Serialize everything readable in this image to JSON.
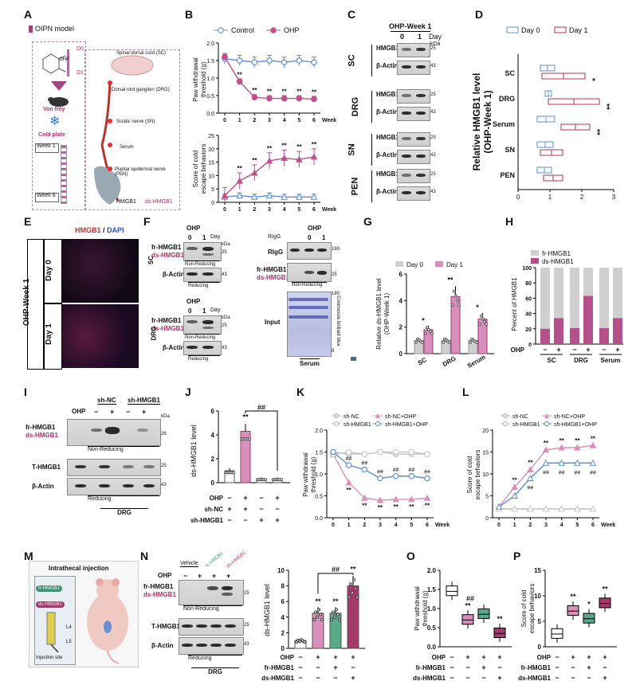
{
  "panels": {
    "A": {
      "label": "A",
      "model": "OIPN model",
      "chem": "OHP",
      "drug_labels": [
        "D0",
        "D1"
      ],
      "tests": [
        "Von frey",
        "Cold plate"
      ],
      "weeks": [
        "Week 1",
        "Week 6"
      ],
      "sites": [
        "Spinal dorsal cord (SC)",
        "Dorsal root ganglion (DRG)",
        "Sciatic nerve (SN)",
        "Serum",
        "Plantar epidermal nerve (PEN)"
      ],
      "legend": [
        "HMGB1",
        "ds-HMGB1"
      ]
    },
    "B": {
      "label": "B",
      "legend": [
        "Control",
        "OHP"
      ],
      "ylabel_top": "Paw withdrawal threshold (g)",
      "ylabel_bottom": "Score of cold escape behaviors",
      "xlabel": "Week"
    },
    "C": {
      "label": "C",
      "title": "OHP-Week 1",
      "day_labels": [
        "0",
        "1"
      ],
      "day_word": "Day",
      "kda": "kDa",
      "groups": [
        "SC",
        "DRG",
        "SN",
        "PEN"
      ],
      "proteins": [
        "HMGB1",
        "β-Actin"
      ],
      "mw": [
        "25",
        "43"
      ]
    },
    "D": {
      "label": "D",
      "legend": [
        "Day 0",
        "Day 1"
      ],
      "ylabel": "Relative HMGB1 level (OHP-Week 1)",
      "categories": [
        "SC",
        "DRG",
        "Serum",
        "SN",
        "PEN"
      ],
      "sig": [
        "*",
        "**",
        "**",
        "",
        ""
      ]
    },
    "E": {
      "label": "E",
      "title": "HMGB1 / DAPI",
      "title_a": "HMGB1",
      "title_sep": "/",
      "title_b": "DAPI",
      "side": "OHP-Week 1",
      "rows": [
        "Day 0",
        "Day 1"
      ]
    },
    "F": {
      "label": "F",
      "ohp": "OHP",
      "day_labels": [
        "0",
        "1"
      ],
      "day_word": "Day",
      "kda": "kDa",
      "sc": "SC",
      "drg": "DRG",
      "fr": "fr-HMGB1",
      "ds": "ds-HMGB1",
      "nonred": "Non-Reducing",
      "red": "Reducing",
      "actin": "β-Actin",
      "rigg": "RIgG",
      "input": "Input",
      "serum": "Serum",
      "coomassie": "Coomassie brilliant blue",
      "mw": [
        "25",
        "43",
        "180",
        "8"
      ]
    },
    "G": {
      "label": "G",
      "legend": [
        "Day 0",
        "Day 1"
      ],
      "ylabel": "Relative ds-HMGB1 level (OHP-Week 1)",
      "categories": [
        "SC",
        "DRG",
        "Serum"
      ],
      "sig": [
        "*",
        "**",
        "*"
      ]
    },
    "H": {
      "label": "H",
      "legend": [
        "fr-HMGB1",
        "ds-HMGB1"
      ],
      "ylabel": "Percent of HMGB1",
      "ohp": "OHP",
      "signs": [
        "−",
        "+",
        "−",
        "+",
        "−",
        "+"
      ],
      "groups": [
        "SC",
        "DRG",
        "Serum"
      ]
    },
    "I": {
      "label": "I",
      "groups": [
        "sh-NC",
        "sh-HMGB1"
      ],
      "ohp": "OHP",
      "signs": [
        "−",
        "+",
        "−",
        "+"
      ],
      "fr": "fr-HMGB1",
      "ds": "ds-HMGB1",
      "t": "T-HMGB1",
      "actin": "β-Actin",
      "nonred": "Non-Reducing",
      "red": "Reducing",
      "drg": "DRG",
      "kda": "kDa",
      "mw": [
        "26",
        "25",
        "43"
      ]
    },
    "J": {
      "label": "J",
      "ylabel": "ds-HMGB1 level",
      "rows": [
        "OHP",
        "sh-NC",
        "sh-HMGB1"
      ],
      "signs": [
        [
          "−",
          "+",
          "−",
          "+"
        ],
        [
          "+",
          "+",
          "−",
          "−"
        ],
        [
          "−",
          "−",
          "+",
          "+"
        ]
      ],
      "sig": [
        "**",
        "##"
      ]
    },
    "K": {
      "label": "K",
      "legend": [
        "sh-NC",
        "sh-NC+OHP",
        "sh-HMGB1",
        "sh-HMGB1+OHP"
      ],
      "ylabel": "Paw withdrawal threshold (g)",
      "xlabel": "Week"
    },
    "L": {
      "label": "L",
      "legend": [
        "sh-NC",
        "sh-NC+OHP",
        "sh-HMGB1",
        "sh-HMGB1+OHP"
      ],
      "ylabel": "Score of cold escape behaviors",
      "xlabel": "Week"
    },
    "M": {
      "label": "M",
      "title": "Intrathecal injection",
      "items": [
        "fr-HMGB1",
        "ds-HMGB1",
        "L4",
        "L5",
        "Injection site"
      ]
    },
    "N": {
      "label": "N",
      "ohp": "OHP",
      "vehicle": "Vehicle",
      "tops": [
        "fr-HMGB1",
        "ds-HMGB1"
      ],
      "fr": "fr-HMGB1",
      "ds": "ds-HMGB1",
      "t": "T-HMGB1",
      "actin": "β-Actin",
      "nonred": "Non-Reducing",
      "red": "Reducing",
      "drg": "DRG",
      "ylabel": "ds-HMGB1 level",
      "rows": [
        "OHP",
        "fr-HMGB1",
        "ds-HMGB1"
      ],
      "signs": [
        [
          "−",
          "+",
          "+",
          "+"
        ],
        [
          "−",
          "−",
          "+",
          "−"
        ],
        [
          "−",
          "−",
          "−",
          "+"
        ]
      ],
      "mw": [
        "25",
        "25",
        "43"
      ]
    },
    "O": {
      "label": "O",
      "ylabel": "Paw withdrawal threshold (g)",
      "rows": [
        "OHP",
        "fr-HMGB1",
        "ds-HMGB1"
      ],
      "signs": [
        [
          "−",
          "+",
          "+",
          "+"
        ],
        [
          "−",
          "−",
          "+",
          "−"
        ],
        [
          "−",
          "−",
          "−",
          "+"
        ]
      ]
    },
    "P": {
      "label": "P",
      "ylabel": "Score of cold escape behaviors",
      "rows": [
        "OHP",
        "fr-HMGB1",
        "ds-HMGB1"
      ],
      "signs": [
        [
          "−",
          "+",
          "+",
          "+"
        ],
        [
          "−",
          "−",
          "+",
          "−"
        ],
        [
          "−",
          "−",
          "−",
          "+"
        ]
      ]
    }
  },
  "chart_data": [
    {
      "id": "B-top",
      "type": "line",
      "x": [
        0,
        1,
        2,
        3,
        4,
        5,
        6
      ],
      "xlabel": "Week",
      "ylabel": "Paw withdrawal threshold (g)",
      "ylim": [
        0,
        2.0
      ],
      "yticks": [
        0,
        0.5,
        1.0,
        1.5,
        2.0
      ],
      "series": [
        {
          "name": "Control",
          "values": [
            1.55,
            1.5,
            1.45,
            1.5,
            1.45,
            1.5,
            1.45
          ],
          "err": 0.15
        },
        {
          "name": "OHP",
          "values": [
            1.6,
            0.9,
            0.45,
            0.42,
            0.42,
            0.42,
            0.4
          ],
          "err": 0.08
        }
      ],
      "annotations": [
        "",
        "**",
        "**",
        "**",
        "**",
        "**",
        "**"
      ]
    },
    {
      "id": "B-bottom",
      "type": "line",
      "x": [
        0,
        1,
        2,
        3,
        4,
        5,
        6
      ],
      "xlabel": "Week",
      "ylabel": "Score of cold escape behaviors",
      "ylim": [
        0,
        25
      ],
      "yticks": [
        0,
        5,
        10,
        15,
        20,
        25
      ],
      "series": [
        {
          "name": "Control",
          "values": [
            2,
            2.5,
            2,
            2.5,
            2,
            2,
            2
          ],
          "err": 1.0
        },
        {
          "name": "OHP",
          "values": [
            2.5,
            8,
            11,
            15.5,
            16.5,
            16,
            17
          ],
          "err": 3.0
        }
      ],
      "annotations": [
        "",
        "**",
        "**",
        "**",
        "**",
        "**",
        "**"
      ]
    },
    {
      "id": "D",
      "type": "bar",
      "categories": [
        "SC",
        "DRG",
        "Serum",
        "SN",
        "PEN"
      ],
      "xlim": [
        0,
        3
      ],
      "xticks": [
        0,
        1,
        2,
        3
      ],
      "series": [
        {
          "name": "Day 0",
          "values": [
            1.15,
            1.05,
            1.15,
            1.1,
            1.05
          ],
          "start": [
            0.7,
            0.85,
            0.6,
            0.6,
            0.6
          ]
        },
        {
          "name": "Day 1",
          "values": [
            2.1,
            2.55,
            2.25,
            1.4,
            1.4
          ],
          "start": [
            0.75,
            0.95,
            1.35,
            0.7,
            0.8
          ]
        }
      ]
    },
    {
      "id": "G",
      "type": "bar",
      "categories": [
        "SC",
        "DRG",
        "Serum"
      ],
      "ylim": [
        0,
        6
      ],
      "yticks": [
        0,
        2,
        4,
        6
      ],
      "series": [
        {
          "name": "Day 0",
          "values": [
            1.0,
            1.0,
            1.0
          ]
        },
        {
          "name": "Day 1",
          "values": [
            1.8,
            4.3,
            2.6
          ]
        }
      ]
    },
    {
      "id": "H",
      "type": "bar",
      "categories": [
        "SC −",
        "SC +",
        "DRG −",
        "DRG +",
        "Serum −",
        "Serum +"
      ],
      "ylim": [
        0,
        100
      ],
      "yticks": [
        0,
        20,
        40,
        60,
        80,
        100
      ],
      "series": [
        {
          "name": "ds-HMGB1",
          "values": [
            20,
            34,
            21,
            63,
            21,
            34
          ]
        },
        {
          "name": "fr-HMGB1",
          "values": [
            80,
            66,
            79,
            37,
            79,
            66
          ]
        }
      ]
    },
    {
      "id": "J",
      "type": "bar",
      "categories": [
        "1",
        "2",
        "3",
        "4"
      ],
      "ylim": [
        0,
        6
      ],
      "yticks": [
        0,
        2,
        4,
        6
      ],
      "series": [
        {
          "name": "ds-HMGB1 level",
          "values": [
            1.0,
            4.3,
            0.3,
            0.3
          ]
        }
      ]
    },
    {
      "id": "K",
      "type": "line",
      "x": [
        0,
        1,
        2,
        3,
        4,
        5,
        6
      ],
      "xlabel": "Week",
      "ylabel": "Paw withdrawal threshold (g)",
      "ylim": [
        0,
        2.0
      ],
      "yticks": [
        0,
        0.5,
        1.0,
        1.5,
        2.0
      ],
      "series": [
        {
          "name": "sh-NC",
          "values": [
            1.5,
            1.45,
            1.45,
            1.5,
            1.45,
            1.45,
            1.45
          ]
        },
        {
          "name": "sh-NC+OHP",
          "values": [
            1.45,
            0.8,
            0.45,
            0.4,
            0.42,
            0.42,
            0.45
          ]
        },
        {
          "name": "sh-HMGB1",
          "values": [
            1.45,
            1.5,
            1.45,
            1.5,
            1.5,
            1.5,
            1.45
          ]
        },
        {
          "name": "sh-HMGB1+OHP",
          "values": [
            1.5,
            1.2,
            1.1,
            0.9,
            0.95,
            0.95,
            0.9
          ]
        }
      ]
    },
    {
      "id": "L",
      "type": "line",
      "x": [
        0,
        1,
        2,
        3,
        4,
        5,
        6
      ],
      "xlabel": "Week",
      "ylabel": "Score of cold escape behaviors",
      "ylim": [
        0,
        20
      ],
      "yticks": [
        0,
        5,
        10,
        15,
        20
      ],
      "series": [
        {
          "name": "sh-NC",
          "values": [
            2,
            2,
            2,
            2,
            2,
            2,
            2
          ]
        },
        {
          "name": "sh-NC+OHP",
          "values": [
            2.5,
            7,
            11,
            15.5,
            16,
            16,
            16.5
          ]
        },
        {
          "name": "sh-HMGB1",
          "values": [
            2,
            2,
            2,
            2,
            2,
            2,
            2
          ]
        },
        {
          "name": "sh-HMGB1+OHP",
          "values": [
            2.5,
            5,
            9,
            12.5,
            12.5,
            12.5,
            12.5
          ]
        }
      ]
    },
    {
      "id": "N",
      "type": "bar",
      "categories": [
        "1",
        "2",
        "3",
        "4"
      ],
      "ylim": [
        0,
        10
      ],
      "yticks": [
        0,
        2,
        4,
        6,
        8,
        10
      ],
      "series": [
        {
          "name": "ds-HMGB1 level",
          "values": [
            1.0,
            4.5,
            4.5,
            8.0
          ]
        }
      ]
    },
    {
      "id": "O",
      "type": "box",
      "categories": [
        "1",
        "2",
        "3",
        "4"
      ],
      "ylim": [
        0,
        2.0
      ],
      "yticks": [
        0,
        0.5,
        1.0,
        1.5,
        2.0
      ],
      "series": [
        {
          "name": "Paw withdrawal threshold",
          "values": [
            1.45,
            0.7,
            0.85,
            0.35
          ]
        }
      ]
    },
    {
      "id": "P",
      "type": "box",
      "categories": [
        "1",
        "2",
        "3",
        "4"
      ],
      "ylim": [
        0,
        15
      ],
      "yticks": [
        0,
        5,
        10,
        15
      ],
      "series": [
        {
          "name": "Score of cold escape behaviors",
          "values": [
            2.5,
            7,
            5.5,
            8.5
          ]
        }
      ]
    }
  ]
}
